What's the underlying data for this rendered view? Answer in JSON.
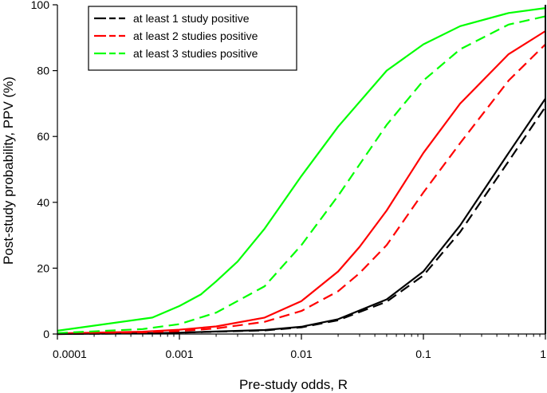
{
  "chart_data": {
    "type": "line",
    "title": "",
    "xlabel": "Pre-study odds, R",
    "ylabel": "Post-study probability, PPV (%)",
    "xscale": "log",
    "xlim": [
      0.0001,
      1
    ],
    "ylim": [
      0,
      100
    ],
    "x_ticks": [
      0.0001,
      0.001,
      0.01,
      0.1,
      1
    ],
    "x_tick_labels": [
      "0.0001",
      "0.001",
      "0.01",
      "0.1",
      "1"
    ],
    "y_ticks": [
      0,
      20,
      40,
      60,
      80,
      100
    ],
    "y_tick_labels": [
      "0",
      "20",
      "40",
      "60",
      "80",
      "100"
    ],
    "grid": false,
    "legend_position": "top-left",
    "legend": [
      {
        "label": "at least 1 study positive",
        "color": "#000000"
      },
      {
        "label": "at least 2 studies positive",
        "color": "#ff0000"
      },
      {
        "label": "at least 3 studies positive",
        "color": "#00ff00"
      }
    ],
    "series": [
      {
        "group": 0,
        "style": "solid",
        "color": "#000000",
        "x": [
          0.0001,
          0.0005,
          0.001,
          0.005,
          0.01,
          0.02,
          0.05,
          0.1,
          0.2,
          0.5,
          1
        ],
        "y": [
          0.0,
          0.2,
          0.4,
          1.2,
          2.2,
          4.5,
          10.5,
          19.0,
          33.0,
          55.0,
          71.5
        ]
      },
      {
        "group": 0,
        "style": "dashed",
        "color": "#000000",
        "x": [
          0.0001,
          0.0005,
          0.001,
          0.005,
          0.01,
          0.02,
          0.05,
          0.1,
          0.2,
          0.5,
          1
        ],
        "y": [
          0.0,
          0.2,
          0.4,
          1.1,
          2.0,
          4.2,
          9.8,
          17.8,
          31.0,
          52.5,
          69.0
        ]
      },
      {
        "group": 1,
        "style": "solid",
        "color": "#ff0000",
        "x": [
          0.0001,
          0.0005,
          0.001,
          0.002,
          0.005,
          0.01,
          0.02,
          0.03,
          0.05,
          0.1,
          0.2,
          0.5,
          1
        ],
        "y": [
          0.2,
          0.7,
          1.3,
          2.3,
          5.0,
          10.0,
          19.0,
          26.5,
          37.5,
          55.0,
          70.0,
          85.0,
          92.0
        ]
      },
      {
        "group": 1,
        "style": "dashed",
        "color": "#ff0000",
        "x": [
          0.0001,
          0.0005,
          0.001,
          0.002,
          0.005,
          0.01,
          0.02,
          0.03,
          0.05,
          0.1,
          0.2,
          0.5,
          1
        ],
        "y": [
          0.1,
          0.5,
          0.9,
          1.7,
          3.7,
          7.0,
          13.0,
          18.5,
          27.0,
          43.0,
          58.0,
          77.0,
          88.0
        ]
      },
      {
        "group": 2,
        "style": "solid",
        "color": "#00ff00",
        "x": [
          0.0001,
          0.0006,
          0.001,
          0.0015,
          0.002,
          0.003,
          0.005,
          0.01,
          0.02,
          0.05,
          0.1,
          0.2,
          0.5,
          1
        ],
        "y": [
          1.0,
          5.0,
          8.5,
          12.0,
          16.0,
          22.0,
          32.0,
          48.0,
          63.0,
          80.0,
          88.0,
          93.5,
          97.5,
          99.0
        ]
      },
      {
        "group": 2,
        "style": "dashed",
        "color": "#00ff00",
        "x": [
          0.0001,
          0.0005,
          0.001,
          0.002,
          0.005,
          0.01,
          0.02,
          0.05,
          0.1,
          0.2,
          0.5,
          1
        ],
        "y": [
          0.3,
          1.5,
          3.0,
          6.5,
          14.5,
          27.0,
          42.0,
          63.5,
          77.0,
          86.5,
          94.0,
          96.5
        ]
      }
    ]
  }
}
